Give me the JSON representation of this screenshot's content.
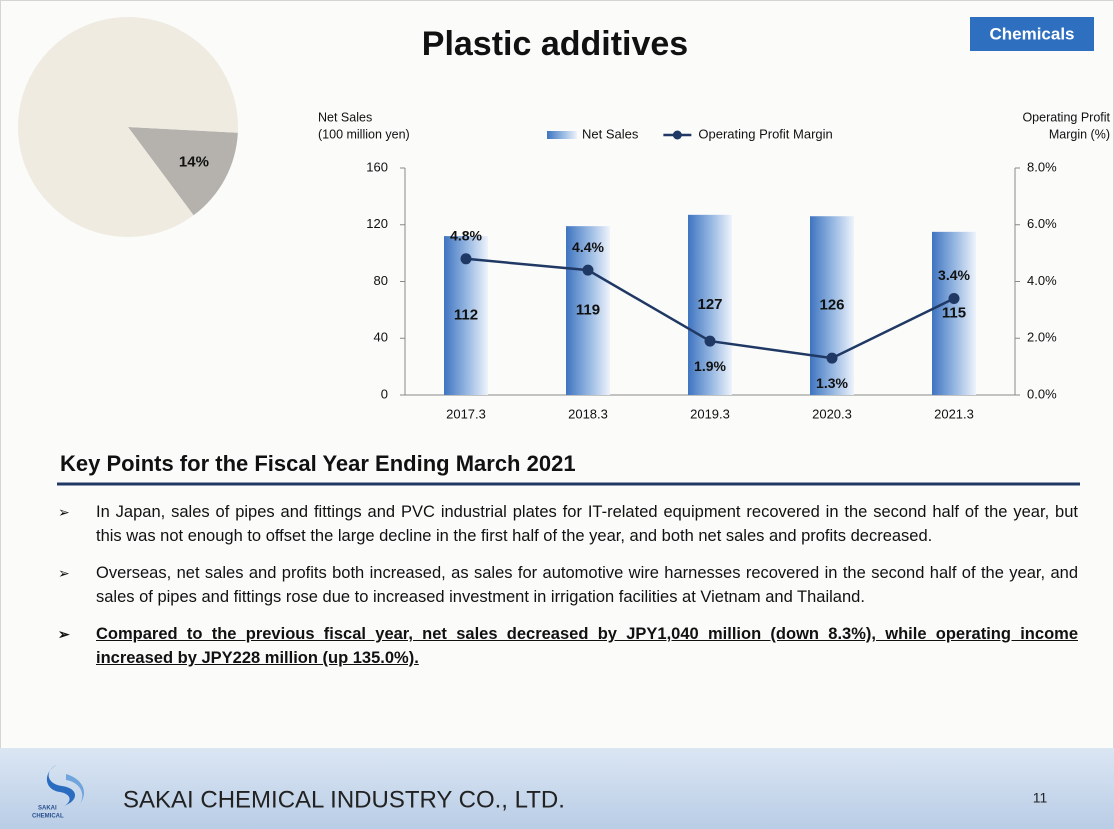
{
  "title": "Plastic additives",
  "tag": "Chemicals",
  "chart_data": [
    {
      "type": "pie",
      "values": [
        14,
        86
      ],
      "value_labels": [
        "14%",
        null
      ],
      "colors": [
        "#b5b2ad",
        "#efebe1"
      ]
    },
    {
      "type": "bar",
      "categories": [
        "2017.3",
        "2018.3",
        "2019.3",
        "2020.3",
        "2021.3"
      ],
      "series": [
        {
          "name": "Net Sales",
          "color": "#4a7fc6",
          "values": [
            112,
            119,
            127,
            126,
            115
          ]
        },
        {
          "name": "Operating Profit Margin",
          "type": "line",
          "axis": "y2",
          "color": "#1f3864",
          "values": [
            4.8,
            4.4,
            1.9,
            1.3,
            3.4
          ],
          "value_labels": [
            "4.8%",
            "4.4%",
            "1.9%",
            "1.3%",
            "3.4%"
          ]
        }
      ],
      "y_label": [
        "Net Sales",
        "(100 million yen)"
      ],
      "y2_label": [
        "Operating Profit",
        "Margin (%)"
      ],
      "ylim": [
        0,
        160
      ],
      "yticks": [
        0,
        40,
        80,
        120,
        160
      ],
      "y2lim": [
        0,
        8
      ],
      "y2ticks": [
        {
          "value": 0,
          "label": "0.0%"
        },
        {
          "value": 2,
          "label": "2.0%"
        },
        {
          "value": 4,
          "label": "4.0%"
        },
        {
          "value": 6,
          "label": "6.0%"
        },
        {
          "value": 8,
          "label": "8.0%"
        }
      ]
    }
  ],
  "key_points": {
    "heading": "Key Points for the Fiscal Year Ending March 2021",
    "items": [
      "In Japan, sales of pipes and fittings and PVC industrial plates for IT-related equipment recovered in the second half of the year, but this was not enough to offset the large decline in the first half of the year, and both net sales and profits decreased.",
      "Overseas, net sales and profits both increased, as sales for automotive wire harnesses recovered in the second half of the year, and sales of pipes and fittings rose due to increased investment in irrigation facilities at Vietnam and Thailand.",
      "Compared to the previous fiscal year, net sales decreased by JPY1,040 million (down 8.3%), while operating income increased by JPY228 million (up 135.0%)."
    ]
  },
  "footer": {
    "logo_text": [
      "SAKAI",
      "CHEMICAL"
    ],
    "company": "SAKAI CHEMICAL INDUSTRY CO., LTD.",
    "page": 11
  }
}
